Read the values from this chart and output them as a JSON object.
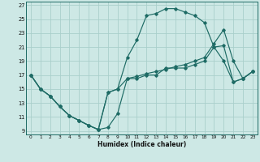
{
  "xlabel": "Humidex (Indice chaleur)",
  "xlim": [
    -0.5,
    23.5
  ],
  "ylim": [
    8.5,
    27.5
  ],
  "yticks": [
    9,
    11,
    13,
    15,
    17,
    19,
    21,
    23,
    25,
    27
  ],
  "xticks": [
    0,
    1,
    2,
    3,
    4,
    5,
    6,
    7,
    8,
    9,
    10,
    11,
    12,
    13,
    14,
    15,
    16,
    17,
    18,
    19,
    20,
    21,
    22,
    23
  ],
  "background_color": "#cde8e5",
  "grid_color": "#aacfcb",
  "line_color": "#1e6b65",
  "line1_x": [
    0,
    1,
    2,
    3,
    4,
    5,
    6,
    7,
    8,
    9,
    10,
    11,
    12,
    13,
    14,
    15,
    16,
    17,
    18,
    19,
    20,
    21,
    22,
    23
  ],
  "line1_y": [
    17,
    15,
    14,
    12.5,
    11.2,
    10.5,
    9.8,
    9.2,
    14.5,
    15,
    16.5,
    16.8,
    17.2,
    17.5,
    17.8,
    18.2,
    18.5,
    19,
    19.5,
    21.5,
    23.5,
    19,
    16.5,
    17.5
  ],
  "line2_x": [
    0,
    1,
    2,
    3,
    4,
    5,
    6,
    7,
    8,
    9,
    10,
    11,
    12,
    13,
    14,
    15,
    16,
    17,
    18,
    19,
    20,
    21,
    22,
    23
  ],
  "line2_y": [
    17,
    15,
    14,
    12.5,
    11.2,
    10.5,
    9.8,
    9.2,
    14.5,
    15,
    19.5,
    22,
    25.5,
    25.8,
    26.5,
    26.5,
    26,
    25.5,
    24.5,
    21,
    19,
    16,
    16.5,
    17.5
  ],
  "line3_x": [
    0,
    1,
    2,
    3,
    4,
    5,
    6,
    7,
    8,
    9,
    10,
    11,
    12,
    13,
    14,
    15,
    16,
    17,
    18,
    19,
    20,
    21,
    22,
    23
  ],
  "line3_y": [
    17,
    15,
    14,
    12.5,
    11.2,
    10.5,
    9.8,
    9.2,
    9.5,
    11.5,
    16.5,
    16.5,
    17,
    17,
    18,
    18,
    18,
    18.5,
    19,
    21,
    21.2,
    16,
    16.5,
    17.5
  ]
}
